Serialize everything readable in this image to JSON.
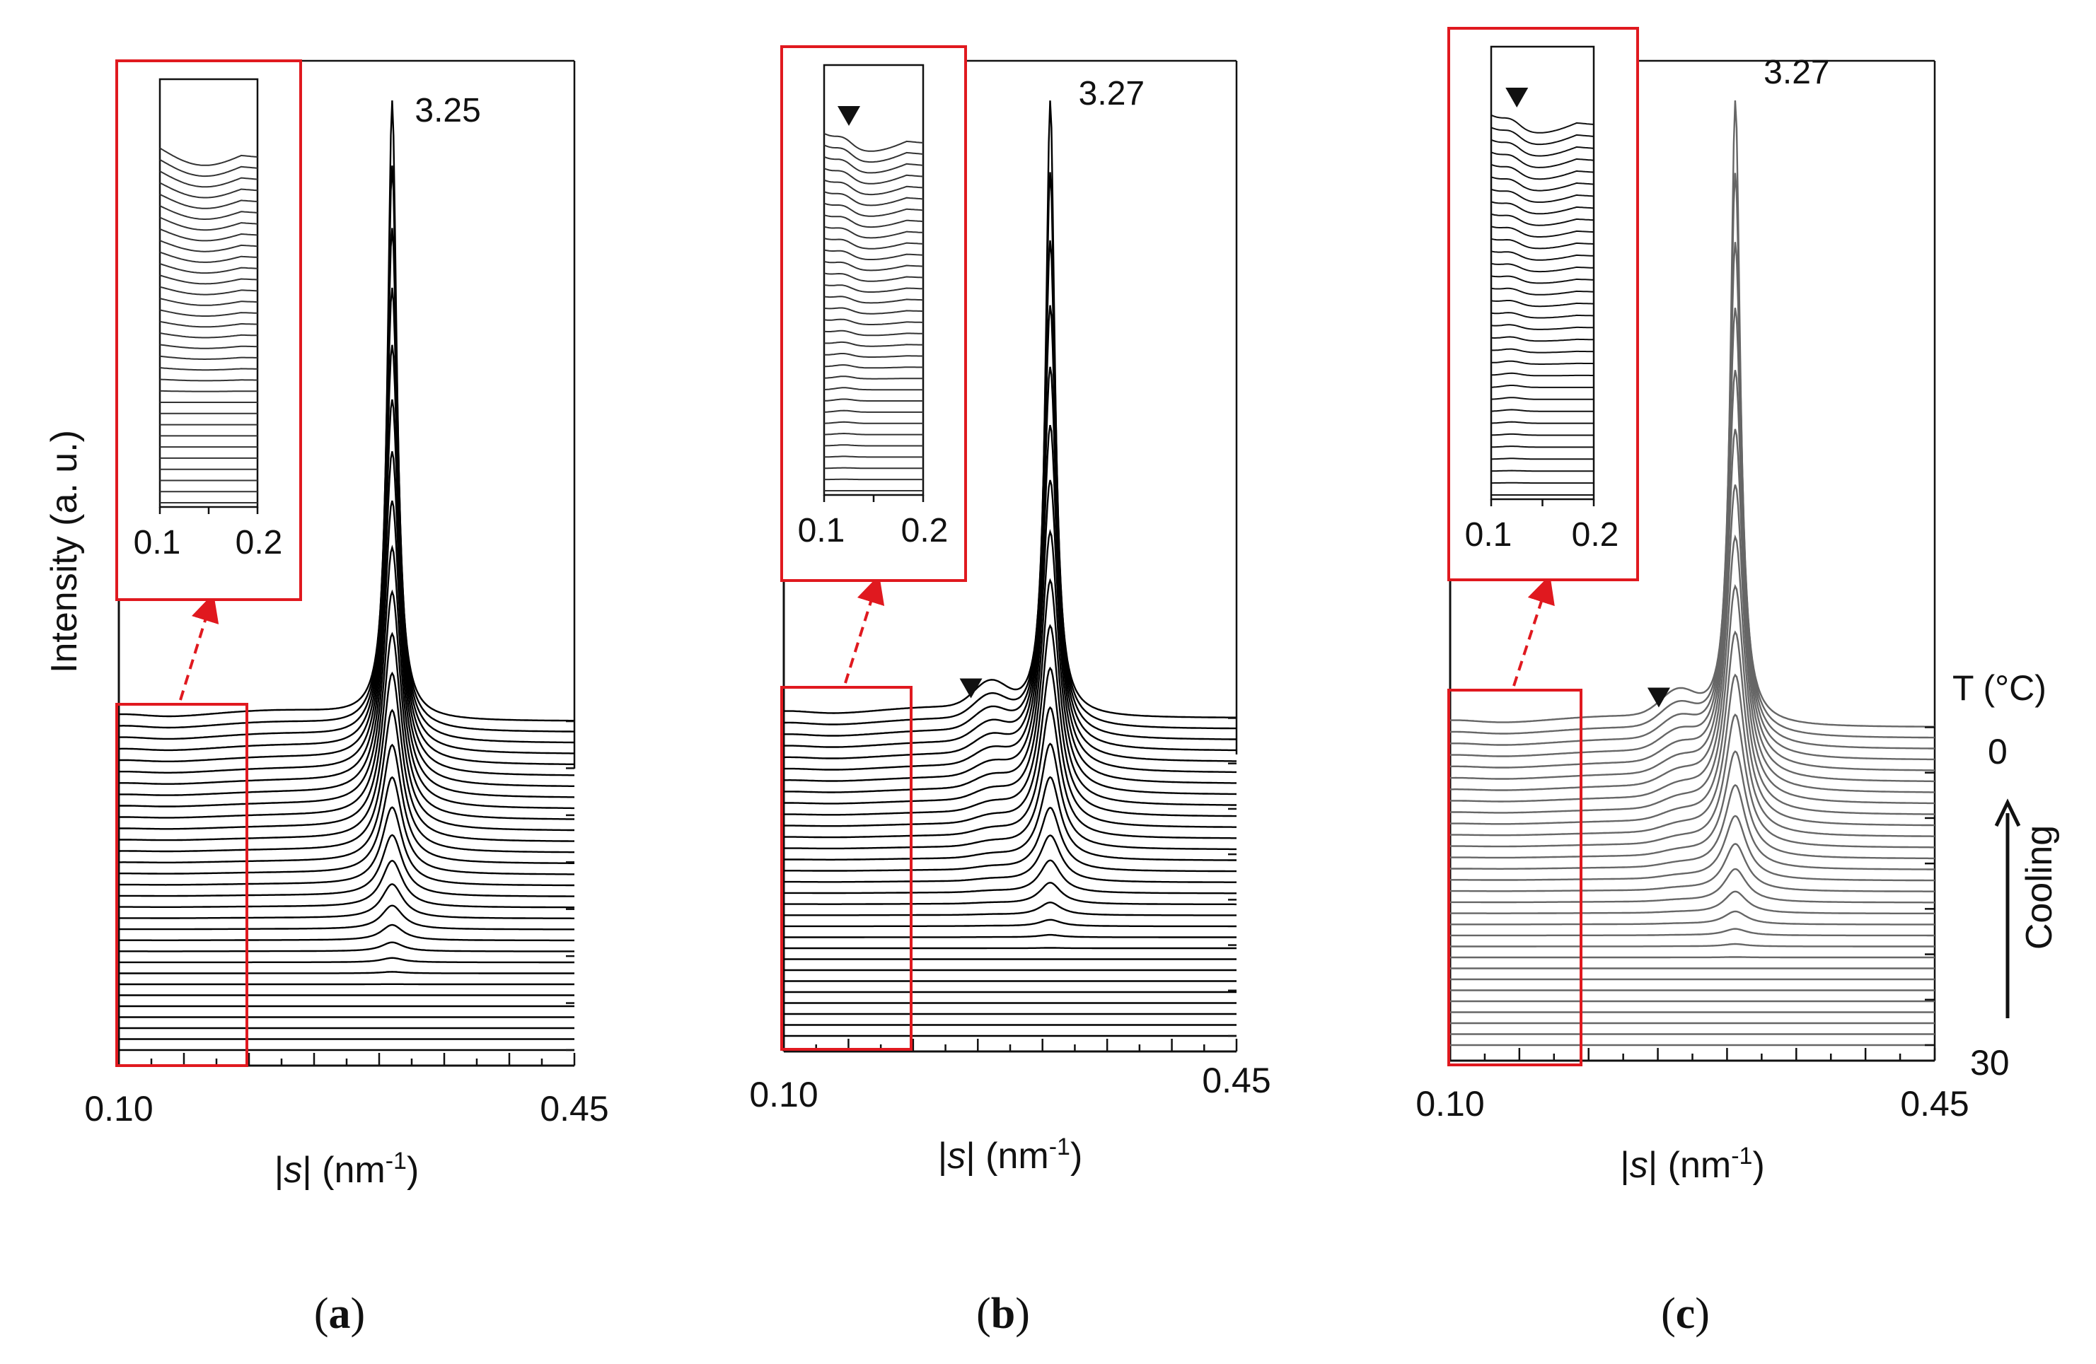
{
  "figure": {
    "y_axis_title": "Intensity (a. u.)",
    "temperature_axis": {
      "title": "T (°C)",
      "top_label": "0",
      "bottom_label": "30",
      "direction_label": "Cooling"
    },
    "colors": {
      "curve_dark": "#000000",
      "curve_light": "#666666",
      "highlight": "#e0191f"
    }
  },
  "chart_data": [
    {
      "type": "line",
      "panel": "a",
      "panel_label_open": "(",
      "panel_label_letter": "a",
      "panel_label_close": ")",
      "description_series": "stacked SAXS profiles, one per temperature step while cooling from 30 to 0 °C",
      "x_range": [
        0.1,
        0.45
      ],
      "x_tick_labels": [
        "0.10",
        "0.45"
      ],
      "xlabel_prefix": "|",
      "xlabel_var": "s",
      "xlabel_mid": "| (nm",
      "xlabel_sup": "-1",
      "xlabel_suffix": ")",
      "ylabel": "Intensity (a. u.)",
      "peak_position": 0.31,
      "peak_label": "3.25",
      "n_curves": 31,
      "peak_height_top": 1.0,
      "shoulder": false,
      "curve_color": "#000000",
      "inset": {
        "x_range": [
          0.1,
          0.2
        ],
        "x_tick_labels": [
          "0.1",
          "0.2"
        ],
        "marker": false
      }
    },
    {
      "type": "line",
      "panel": "b",
      "panel_label_open": "(",
      "panel_label_letter": "b",
      "panel_label_close": ")",
      "description_series": "stacked SAXS profiles, one per temperature step while cooling from 30 to 0 °C",
      "x_range": [
        0.1,
        0.45
      ],
      "x_tick_labels": [
        "0.10",
        "0.45"
      ],
      "xlabel_prefix": "|",
      "xlabel_var": "s",
      "xlabel_mid": "| (nm",
      "xlabel_sup": "-1",
      "xlabel_suffix": ")",
      "peak_position": 0.306,
      "peak_label": "3.27",
      "n_curves": 30,
      "peak_height_top": 1.0,
      "shoulder": true,
      "shoulder_position": 0.26,
      "curve_color": "#000000",
      "inset": {
        "x_range": [
          0.1,
          0.2
        ],
        "x_tick_labels": [
          "0.1",
          "0.2"
        ],
        "marker": true
      }
    },
    {
      "type": "line",
      "panel": "c",
      "panel_label_open": "(",
      "panel_label_letter": "c",
      "panel_label_close": ")",
      "description_series": "stacked SAXS profiles, one per temperature step while cooling from 30 to 0 °C",
      "x_range": [
        0.1,
        0.45
      ],
      "x_tick_labels": [
        "0.10",
        "0.45"
      ],
      "xlabel_prefix": "|",
      "xlabel_var": "s",
      "xlabel_mid": "| (nm",
      "xlabel_sup": "-1",
      "xlabel_suffix": ")",
      "peak_position": 0.306,
      "peak_label": "3.27",
      "n_curves": 30,
      "peak_height_top": 1.0,
      "shoulder": true,
      "shoulder_position": 0.265,
      "curve_color": "#666666",
      "inset": {
        "x_range": [
          0.1,
          0.2
        ],
        "x_tick_labels": [
          "0.1",
          "0.2"
        ],
        "marker": true
      }
    }
  ]
}
